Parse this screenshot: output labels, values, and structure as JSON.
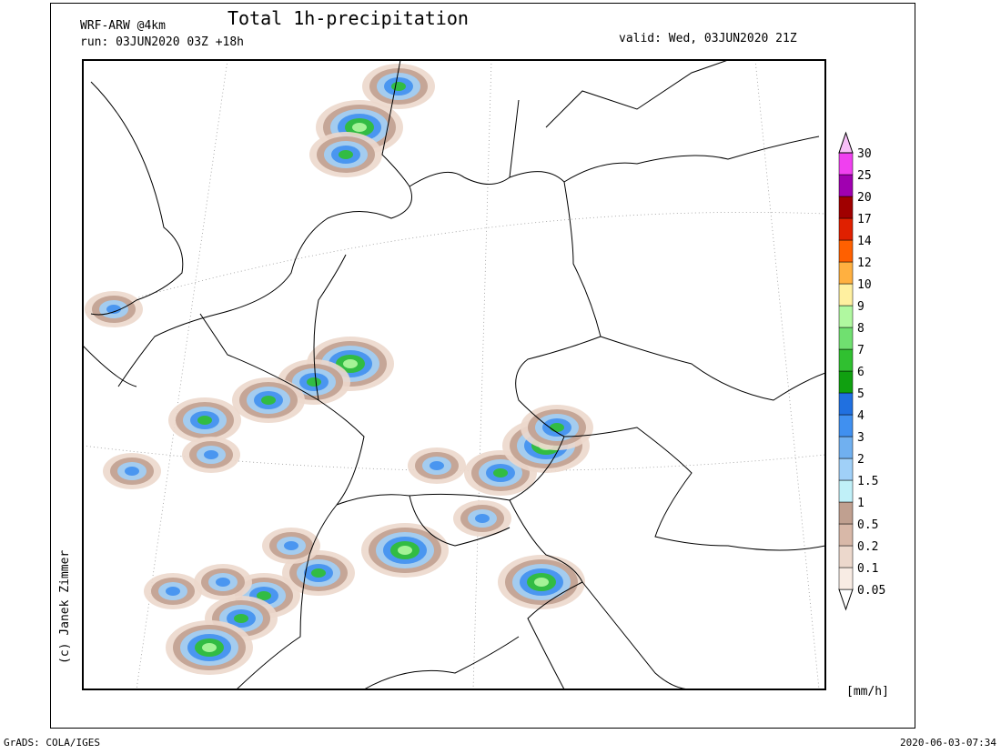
{
  "header": {
    "model": "WRF-ARW @4km",
    "title": "Total 1h-precipitation",
    "run": "run: 03JUN2020 03Z +18h",
    "valid": "valid: Wed, 03JUN2020 21Z"
  },
  "colorbar": {
    "unit": "[mm/h]",
    "levels": [
      0.05,
      0.1,
      0.2,
      0.5,
      1,
      1.5,
      2,
      3,
      4,
      5,
      6,
      7,
      8,
      9,
      10,
      12,
      14,
      17,
      20,
      25,
      30
    ],
    "colors": [
      "#ffffff",
      "#f8ece4",
      "#ecd8cc",
      "#d8b8a8",
      "#c0a090",
      "#c0f0f8",
      "#a0d0f8",
      "#70b0f0",
      "#4090f0",
      "#2070e0",
      "#10a010",
      "#30c030",
      "#70e070",
      "#b0f8a0",
      "#fff0a0",
      "#ffb040",
      "#ff6000",
      "#e02000",
      "#a00000",
      "#a000b0",
      "#f040f0",
      "#f8c0f8"
    ]
  },
  "credit": "(c) Janek Zimmer",
  "footer": {
    "left": "GrADS: COLA/IGES",
    "right": "2020-06-03-07:34"
  }
}
